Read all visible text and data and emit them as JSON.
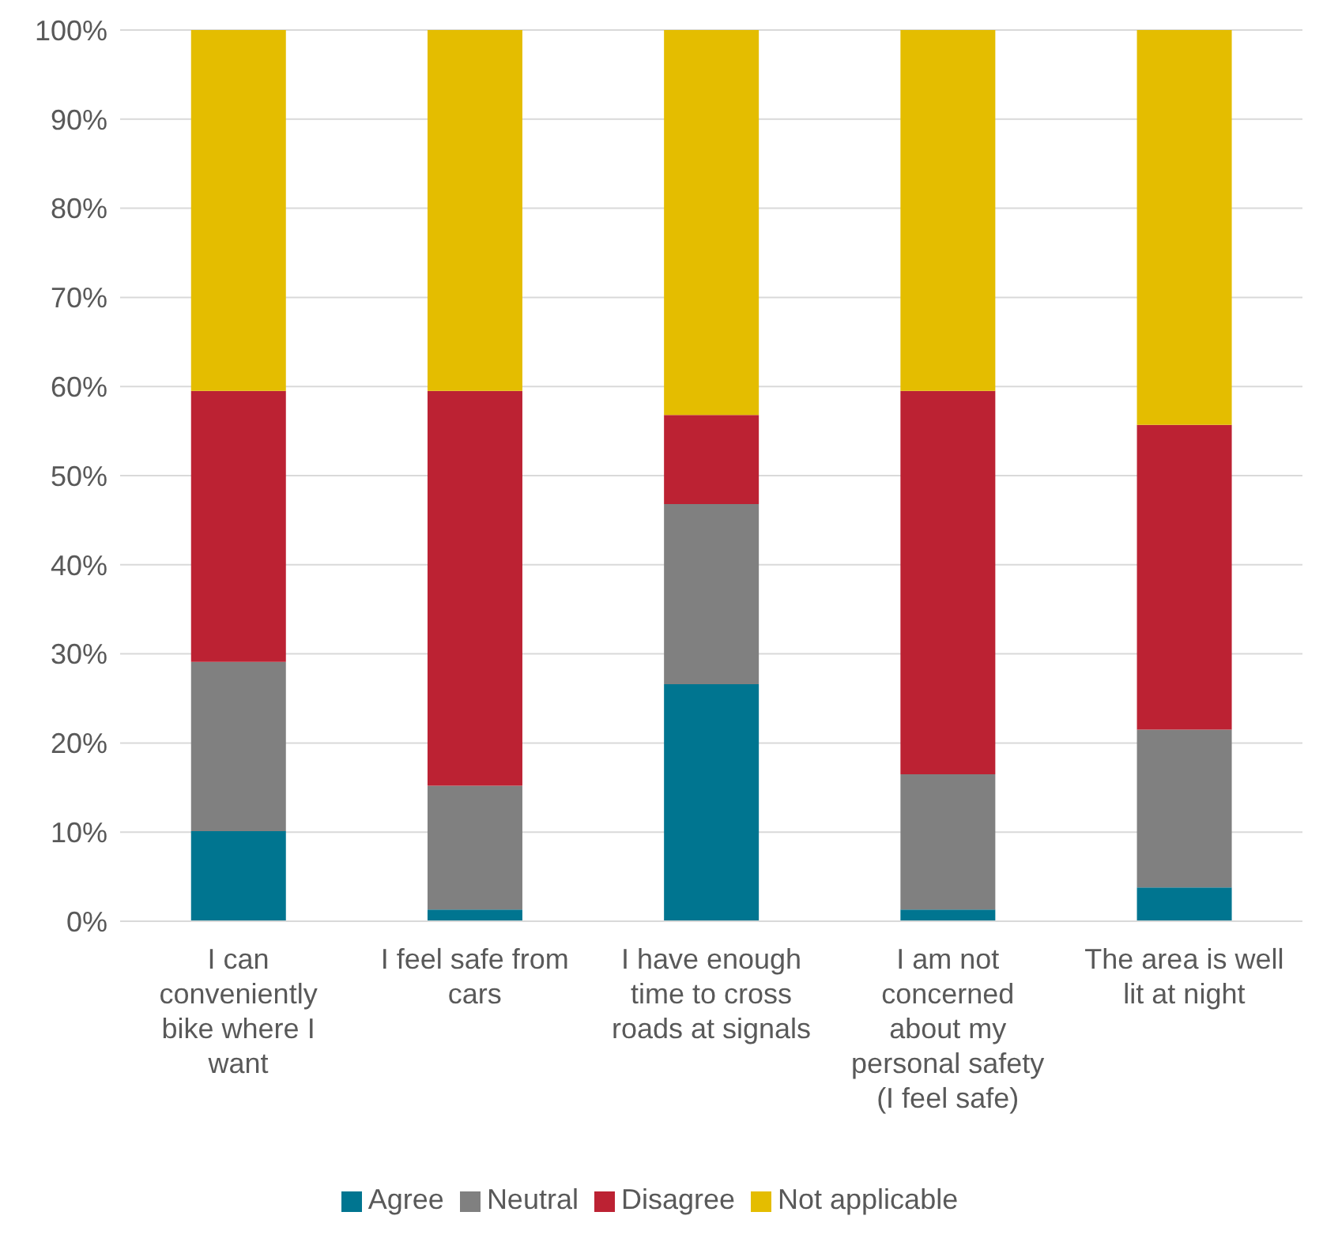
{
  "chart_data": {
    "type": "bar",
    "stacked": true,
    "categories": [
      "I can conveniently bike where I want",
      "I feel safe from cars",
      "I have enough time to cross roads at signals",
      "I am not concerned about my personal safety (I feel safe)",
      "The area is well lit at night"
    ],
    "series": [
      {
        "name": "Agree",
        "color": "#007590",
        "values": [
          10.1,
          1.3,
          26.6,
          1.3,
          3.8
        ]
      },
      {
        "name": "Neutral",
        "color": "#808080",
        "values": [
          19.0,
          13.9,
          20.2,
          15.2,
          17.7
        ]
      },
      {
        "name": "Disagree",
        "color": "#bc2233",
        "values": [
          30.4,
          44.3,
          10.0,
          43.0,
          34.2
        ]
      },
      {
        "name": "Not applicable",
        "color": "#e4bd00",
        "values": [
          40.5,
          40.5,
          43.2,
          40.5,
          44.3
        ]
      }
    ],
    "ylim": [
      0,
      100
    ],
    "yticks": [
      {
        "value": 0,
        "label": "0%"
      },
      {
        "value": 10,
        "label": "10%"
      },
      {
        "value": 20,
        "label": "20%"
      },
      {
        "value": 30,
        "label": "30%"
      },
      {
        "value": 40,
        "label": "40%"
      },
      {
        "value": 50,
        "label": "50%"
      },
      {
        "value": 60,
        "label": "60%"
      },
      {
        "value": 70,
        "label": "70%"
      },
      {
        "value": 80,
        "label": "80%"
      },
      {
        "value": 90,
        "label": "90%"
      },
      {
        "value": 100,
        "label": "100%"
      }
    ],
    "grid": "y",
    "legend": "bottom"
  }
}
